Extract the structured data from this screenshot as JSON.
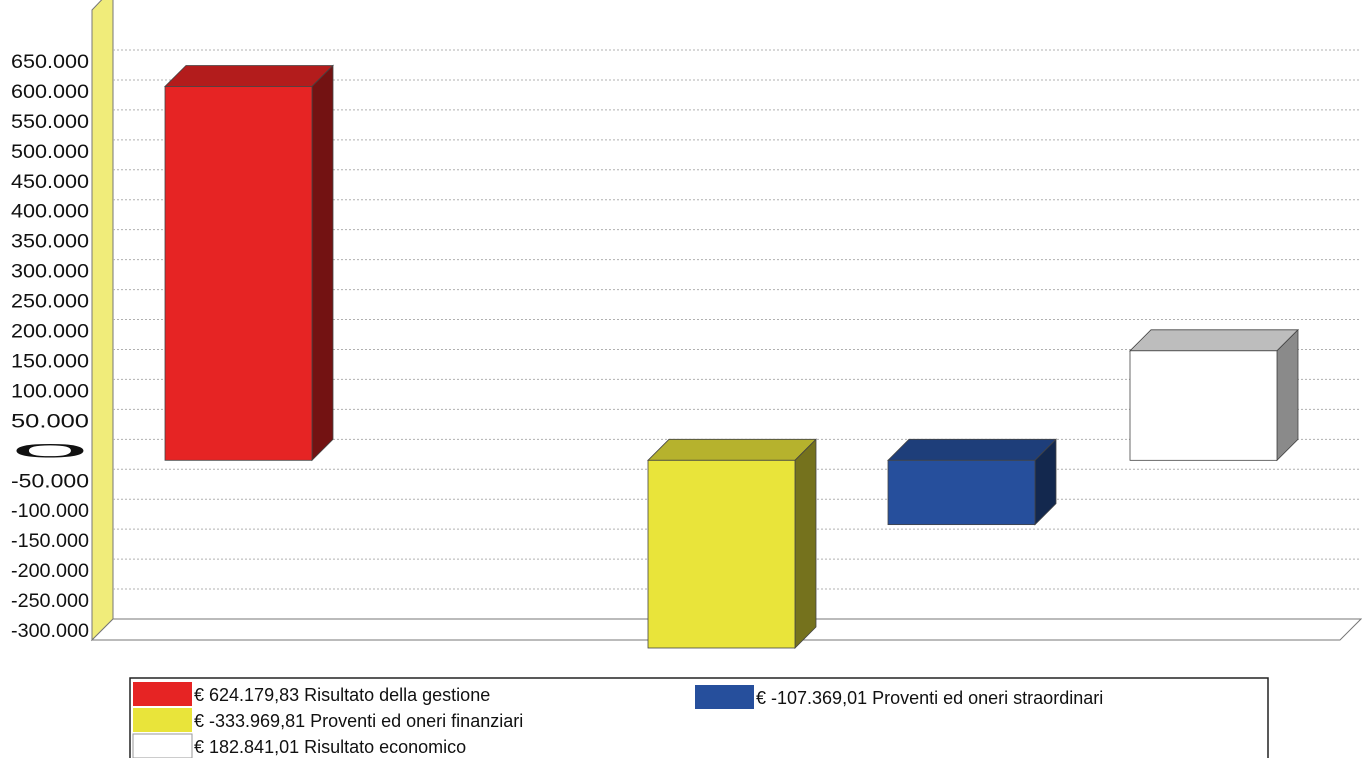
{
  "chart_data": {
    "type": "bar",
    "ylim": [
      -300000,
      650000
    ],
    "ytick_step": 50000,
    "ytick_labels": [
      "650.000",
      "600.000",
      "550.000",
      "500.000",
      "450.000",
      "400.000",
      "350.000",
      "300.000",
      "250.000",
      "200.000",
      "150.000",
      "100.000",
      "50.000",
      "0",
      "-50.000",
      "-100.000",
      "-150.000",
      "-200.000",
      "-250.000",
      "-300.000"
    ],
    "grid": true,
    "legend_position": "bottom",
    "series": [
      {
        "name": "Risultato della gestione",
        "value": 624179.83,
        "legend_label": "€  624.179,83 Risultato della gestione",
        "color": "#e62424"
      },
      {
        "name": "Proventi ed oneri finanziari",
        "value": -333969.81,
        "legend_label": "€ -333.969,81 Proventi ed oneri finanziari",
        "color": "#e9e43a"
      },
      {
        "name": "Proventi ed oneri straordinari",
        "value": -107369.01,
        "legend_label": "€ -107.369,01 Proventi ed oneri straordinari",
        "color": "#264f9c"
      },
      {
        "name": "Risultato economico",
        "value": 182841.01,
        "legend_label": "€  182.841,01 Risultato economico",
        "color": "#ffffff"
      }
    ]
  }
}
